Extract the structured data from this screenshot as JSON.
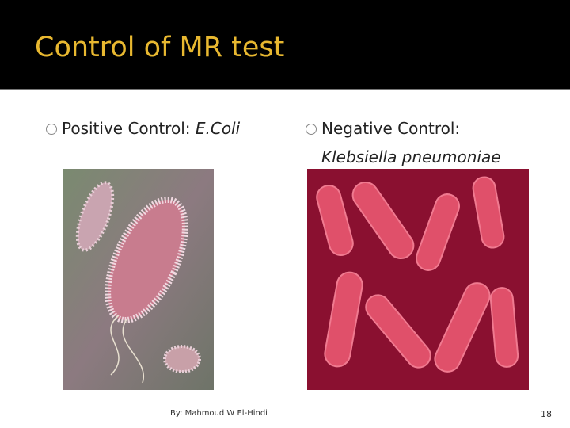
{
  "slide": {
    "title": "Control of MR test",
    "bullets": [
      {
        "label": "Positive Control:",
        "organism": "E.Coli"
      },
      {
        "label": "Negative Control:",
        "organism": "Klebsiella pneumoniae"
      }
    ],
    "footer": "By: Mahmoud W El-Hindi",
    "page_number": "18"
  }
}
